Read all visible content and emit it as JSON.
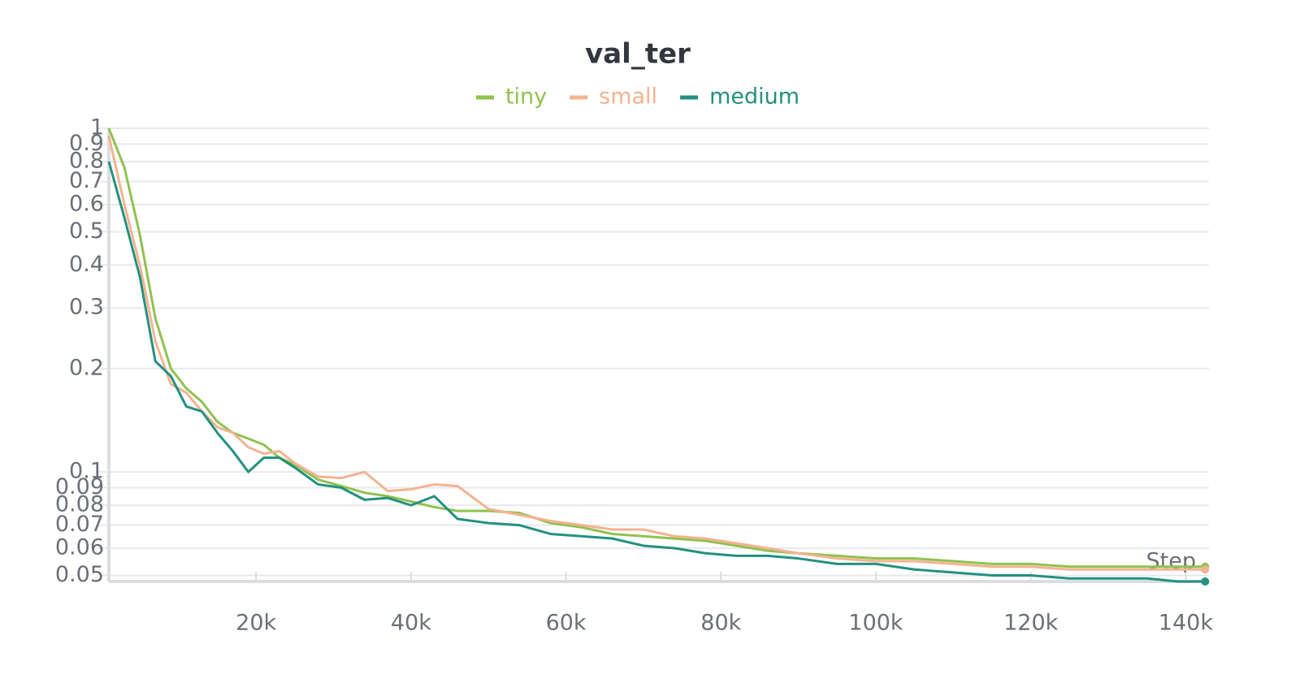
{
  "chart_data": {
    "type": "line",
    "title": "val_ter",
    "x_label": "Step",
    "log_y": true,
    "grid": true,
    "x": [
      1000,
      3000,
      5000,
      7000,
      9000,
      11000,
      13000,
      15000,
      17000,
      19000,
      21000,
      23000,
      25000,
      28000,
      31000,
      34000,
      37000,
      40000,
      43000,
      46000,
      50000,
      54000,
      58000,
      62000,
      66000,
      70000,
      74000,
      78000,
      82000,
      86000,
      90000,
      95000,
      100000,
      105000,
      110000,
      115000,
      120000,
      125000,
      130000,
      135000,
      139000,
      142500
    ],
    "series": [
      {
        "name": "tiny",
        "color": "#8fc24e",
        "values": [
          1.0,
          0.77,
          0.49,
          0.28,
          0.2,
          0.175,
          0.16,
          0.14,
          0.13,
          0.125,
          0.12,
          0.11,
          0.105,
          0.095,
          0.091,
          0.087,
          0.085,
          0.082,
          0.079,
          0.077,
          0.077,
          0.076,
          0.071,
          0.069,
          0.066,
          0.065,
          0.064,
          0.063,
          0.061,
          0.059,
          0.058,
          0.057,
          0.056,
          0.056,
          0.055,
          0.054,
          0.054,
          0.053,
          0.053,
          0.053,
          0.053,
          0.053
        ]
      },
      {
        "name": "small",
        "color": "#f4b390",
        "values": [
          0.95,
          0.6,
          0.4,
          0.24,
          0.18,
          0.17,
          0.15,
          0.135,
          0.13,
          0.118,
          0.113,
          0.115,
          0.106,
          0.097,
          0.096,
          0.1,
          0.088,
          0.089,
          0.092,
          0.091,
          0.078,
          0.075,
          0.072,
          0.07,
          0.068,
          0.068,
          0.065,
          0.064,
          0.062,
          0.06,
          0.058,
          0.056,
          0.055,
          0.055,
          0.054,
          0.053,
          0.053,
          0.052,
          0.052,
          0.052,
          0.052,
          0.052
        ]
      },
      {
        "name": "medium",
        "color": "#23917f",
        "values": [
          0.8,
          0.55,
          0.37,
          0.21,
          0.19,
          0.155,
          0.15,
          0.13,
          0.115,
          0.1,
          0.11,
          0.11,
          0.103,
          0.092,
          0.09,
          0.083,
          0.084,
          0.08,
          0.085,
          0.073,
          0.071,
          0.07,
          0.066,
          0.065,
          0.064,
          0.061,
          0.06,
          0.058,
          0.057,
          0.057,
          0.056,
          0.054,
          0.054,
          0.052,
          0.051,
          0.05,
          0.05,
          0.049,
          0.049,
          0.049,
          0.048,
          0.048
        ]
      }
    ],
    "xlim": [
      1000,
      143000
    ],
    "xticks": [
      {
        "value": 20000,
        "label": "20k"
      },
      {
        "value": 40000,
        "label": "40k"
      },
      {
        "value": 60000,
        "label": "60k"
      },
      {
        "value": 80000,
        "label": "80k"
      },
      {
        "value": 100000,
        "label": "100k"
      },
      {
        "value": 120000,
        "label": "120k"
      },
      {
        "value": 140000,
        "label": "140k"
      }
    ],
    "ylim": [
      0.048,
      1
    ],
    "yticks": [
      0.05,
      0.06,
      0.07,
      0.08,
      0.09,
      0.1,
      0.2,
      0.3,
      0.4,
      0.5,
      0.6,
      0.7,
      0.8,
      0.9,
      1
    ]
  }
}
